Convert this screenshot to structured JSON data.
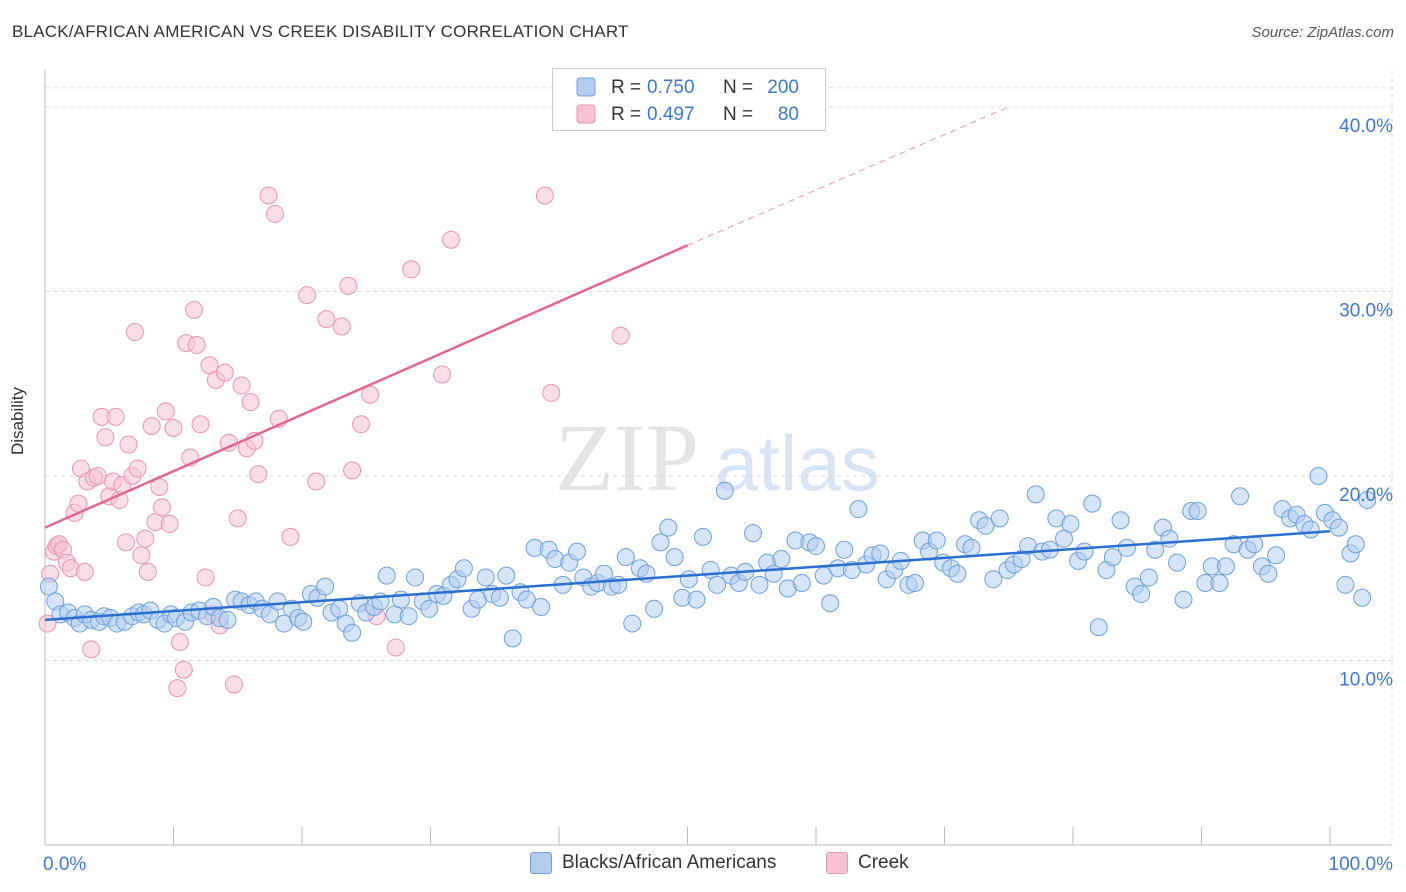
{
  "header": {
    "title": "BLACK/AFRICAN AMERICAN VS CREEK DISABILITY CORRELATION CHART",
    "source": "Source: ZipAtlas.com"
  },
  "watermark": {
    "zip": "ZIP",
    "atlas": "atlas"
  },
  "colors": {
    "blue": "#6fa0dc",
    "blue_fill": "#b3cdf0",
    "blue_line": "#2a6fd0",
    "pink": "#e895b2",
    "pink_fill": "#f6c2d4",
    "pink_line": "#e06890",
    "axis_text": "#3d78d0",
    "grid": "#d8d8d8"
  },
  "stats_legend": {
    "rows": [
      {
        "r_label": "R = ",
        "r_value": "0.750",
        "n_label": "N = ",
        "n_value": "200"
      },
      {
        "r_label": "R = ",
        "r_value": "0.497",
        "n_label": "N = ",
        "n_value": "80"
      }
    ]
  },
  "bottom_legend": {
    "series1": "Blacks/African Americans",
    "series2": "Creek"
  },
  "chart_data": {
    "type": "scatter",
    "title": "BLACK/AFRICAN AMERICAN VS CREEK DISABILITY CORRELATION CHART",
    "xlabel": "",
    "ylabel": "Disability",
    "xlim": [
      0,
      100
    ],
    "ylim": [
      0,
      42
    ],
    "x_tick_labels": [
      "0.0%",
      "100.0%"
    ],
    "y_ticks": [
      10,
      20,
      30,
      40
    ],
    "y_tick_labels": [
      "10.0%",
      "20.0%",
      "30.0%",
      "40.0%"
    ],
    "grid": true,
    "legend": "top-center",
    "series": [
      {
        "name": "Blacks/African Americans",
        "R": 0.75,
        "N": 200,
        "trend": {
          "x": [
            0,
            100
          ],
          "y": [
            12.2,
            17.0
          ],
          "dashed_extension": false
        },
        "points": [
          [
            0.3,
            14.0
          ],
          [
            0.8,
            13.2
          ],
          [
            1.2,
            12.5
          ],
          [
            1.8,
            12.6
          ],
          [
            2.3,
            12.3
          ],
          [
            2.7,
            12.0
          ],
          [
            3.1,
            12.5
          ],
          [
            3.6,
            12.2
          ],
          [
            4.2,
            12.1
          ],
          [
            4.6,
            12.4
          ],
          [
            5.1,
            12.3
          ],
          [
            5.6,
            12.0
          ],
          [
            6.2,
            12.1
          ],
          [
            6.8,
            12.4
          ],
          [
            7.3,
            12.6
          ],
          [
            7.7,
            12.5
          ],
          [
            8.2,
            12.7
          ],
          [
            8.8,
            12.2
          ],
          [
            9.3,
            12.0
          ],
          [
            9.8,
            12.5
          ],
          [
            10.2,
            12.3
          ],
          [
            10.9,
            12.1
          ],
          [
            11.4,
            12.6
          ],
          [
            12.0,
            12.7
          ],
          [
            12.6,
            12.4
          ],
          [
            13.1,
            12.9
          ],
          [
            13.6,
            12.3
          ],
          [
            14.2,
            12.2
          ],
          [
            14.8,
            13.3
          ],
          [
            15.3,
            13.2
          ],
          [
            15.9,
            13.0
          ],
          [
            16.4,
            13.2
          ],
          [
            16.9,
            12.8
          ],
          [
            17.5,
            12.5
          ],
          [
            18.1,
            13.2
          ],
          [
            18.6,
            12.0
          ],
          [
            19.2,
            12.8
          ],
          [
            19.7,
            12.3
          ],
          [
            20.1,
            12.1
          ],
          [
            20.7,
            13.6
          ],
          [
            21.2,
            13.4
          ],
          [
            21.8,
            14.0
          ],
          [
            22.3,
            12.6
          ],
          [
            22.9,
            12.8
          ],
          [
            23.4,
            12.0
          ],
          [
            23.9,
            11.5
          ],
          [
            24.5,
            13.1
          ],
          [
            25.0,
            12.6
          ],
          [
            25.6,
            12.9
          ],
          [
            26.1,
            13.2
          ],
          [
            26.6,
            14.6
          ],
          [
            27.2,
            12.5
          ],
          [
            27.7,
            13.3
          ],
          [
            28.3,
            12.4
          ],
          [
            28.8,
            14.5
          ],
          [
            29.4,
            13.2
          ],
          [
            29.9,
            12.8
          ],
          [
            30.5,
            13.6
          ],
          [
            31.0,
            13.5
          ],
          [
            31.6,
            14.1
          ],
          [
            32.1,
            14.4
          ],
          [
            32.6,
            15.0
          ],
          [
            33.2,
            12.8
          ],
          [
            33.7,
            13.3
          ],
          [
            34.3,
            14.5
          ],
          [
            34.8,
            13.6
          ],
          [
            35.4,
            13.4
          ],
          [
            35.9,
            14.6
          ],
          [
            36.4,
            11.2
          ],
          [
            37.0,
            13.7
          ],
          [
            37.5,
            13.3
          ],
          [
            38.1,
            16.1
          ],
          [
            38.6,
            12.9
          ],
          [
            39.2,
            16.0
          ],
          [
            39.7,
            15.5
          ],
          [
            40.3,
            14.1
          ],
          [
            40.8,
            15.3
          ],
          [
            41.4,
            15.9
          ],
          [
            41.9,
            14.5
          ],
          [
            42.5,
            14.0
          ],
          [
            43.0,
            14.2
          ],
          [
            43.5,
            14.7
          ],
          [
            44.1,
            14.0
          ],
          [
            44.6,
            14.1
          ],
          [
            45.2,
            15.6
          ],
          [
            45.7,
            12.0
          ],
          [
            46.3,
            15.0
          ],
          [
            46.8,
            14.7
          ],
          [
            47.4,
            12.8
          ],
          [
            47.9,
            16.4
          ],
          [
            48.5,
            17.2
          ],
          [
            49.0,
            15.6
          ],
          [
            49.6,
            13.4
          ],
          [
            50.1,
            14.4
          ],
          [
            50.7,
            13.3
          ],
          [
            51.2,
            16.7
          ],
          [
            51.8,
            14.9
          ],
          [
            52.3,
            14.1
          ],
          [
            52.9,
            19.2
          ],
          [
            53.4,
            14.6
          ],
          [
            54.0,
            14.2
          ],
          [
            54.5,
            14.8
          ],
          [
            55.1,
            16.9
          ],
          [
            55.6,
            14.1
          ],
          [
            56.2,
            15.3
          ],
          [
            56.7,
            14.7
          ],
          [
            57.3,
            15.5
          ],
          [
            57.8,
            13.9
          ],
          [
            58.4,
            16.5
          ],
          [
            58.9,
            14.2
          ],
          [
            59.5,
            16.4
          ],
          [
            60.0,
            16.2
          ],
          [
            60.6,
            14.6
          ],
          [
            61.1,
            13.1
          ],
          [
            61.7,
            15.0
          ],
          [
            62.2,
            16.0
          ],
          [
            62.8,
            14.9
          ],
          [
            63.3,
            18.2
          ],
          [
            63.9,
            15.2
          ],
          [
            64.4,
            15.7
          ],
          [
            65.0,
            15.8
          ],
          [
            65.5,
            14.4
          ],
          [
            66.1,
            14.9
          ],
          [
            66.6,
            15.4
          ],
          [
            67.2,
            14.1
          ],
          [
            67.7,
            14.2
          ],
          [
            68.3,
            16.5
          ],
          [
            68.8,
            15.9
          ],
          [
            69.4,
            16.5
          ],
          [
            69.9,
            15.3
          ],
          [
            70.5,
            15.0
          ],
          [
            71.0,
            14.7
          ],
          [
            71.6,
            16.3
          ],
          [
            72.1,
            16.1
          ],
          [
            72.7,
            17.6
          ],
          [
            73.2,
            17.3
          ],
          [
            73.8,
            14.4
          ],
          [
            74.3,
            17.7
          ],
          [
            74.9,
            14.9
          ],
          [
            75.4,
            15.2
          ],
          [
            76.0,
            15.5
          ],
          [
            76.5,
            16.2
          ],
          [
            77.1,
            19.0
          ],
          [
            77.6,
            15.9
          ],
          [
            78.2,
            16.0
          ],
          [
            78.7,
            17.7
          ],
          [
            79.3,
            16.6
          ],
          [
            79.8,
            17.4
          ],
          [
            80.4,
            15.4
          ],
          [
            80.9,
            15.9
          ],
          [
            81.5,
            18.5
          ],
          [
            82.0,
            11.8
          ],
          [
            82.6,
            14.9
          ],
          [
            83.1,
            15.6
          ],
          [
            83.7,
            17.6
          ],
          [
            84.2,
            16.1
          ],
          [
            84.8,
            14.0
          ],
          [
            85.3,
            13.6
          ],
          [
            85.9,
            14.5
          ],
          [
            86.4,
            16.0
          ],
          [
            87.0,
            17.2
          ],
          [
            87.5,
            16.6
          ],
          [
            88.1,
            15.3
          ],
          [
            88.6,
            13.3
          ],
          [
            89.2,
            18.1
          ],
          [
            89.7,
            18.1
          ],
          [
            90.3,
            14.2
          ],
          [
            90.8,
            15.1
          ],
          [
            91.4,
            14.2
          ],
          [
            91.9,
            15.1
          ],
          [
            92.5,
            16.3
          ],
          [
            93.0,
            18.9
          ],
          [
            93.6,
            16.0
          ],
          [
            94.1,
            16.3
          ],
          [
            94.7,
            15.1
          ],
          [
            95.2,
            14.7
          ],
          [
            95.8,
            15.7
          ],
          [
            96.3,
            18.2
          ],
          [
            96.9,
            17.7
          ],
          [
            97.4,
            17.9
          ],
          [
            98.0,
            17.4
          ],
          [
            98.5,
            17.1
          ],
          [
            99.1,
            20.0
          ],
          [
            99.6,
            18.0
          ],
          [
            100.2,
            17.6
          ],
          [
            100.7,
            17.2
          ],
          [
            101.2,
            14.1
          ],
          [
            101.6,
            15.8
          ],
          [
            102.0,
            16.3
          ],
          [
            102.5,
            13.4
          ],
          [
            102.9,
            18.7
          ]
        ]
      },
      {
        "name": "Creek",
        "R": 0.497,
        "N": 80,
        "trend": {
          "x": [
            0,
            50
          ],
          "y": [
            17.2,
            32.5
          ],
          "dashed_to": [
            75,
            40.0
          ]
        },
        "points": [
          [
            0.2,
            12.0
          ],
          [
            0.4,
            14.7
          ],
          [
            0.7,
            15.9
          ],
          [
            0.9,
            16.2
          ],
          [
            1.1,
            16.3
          ],
          [
            1.4,
            16.0
          ],
          [
            1.7,
            15.3
          ],
          [
            2.0,
            15.0
          ],
          [
            2.3,
            18.0
          ],
          [
            2.6,
            18.5
          ],
          [
            2.8,
            20.4
          ],
          [
            3.1,
            14.8
          ],
          [
            3.3,
            19.7
          ],
          [
            3.6,
            10.6
          ],
          [
            3.8,
            19.9
          ],
          [
            4.1,
            20.0
          ],
          [
            4.4,
            23.2
          ],
          [
            4.7,
            22.1
          ],
          [
            5.0,
            18.9
          ],
          [
            5.3,
            19.7
          ],
          [
            5.5,
            23.2
          ],
          [
            5.8,
            18.7
          ],
          [
            6.0,
            19.5
          ],
          [
            6.3,
            16.4
          ],
          [
            6.5,
            21.7
          ],
          [
            6.8,
            20.0
          ],
          [
            7.0,
            27.8
          ],
          [
            7.2,
            20.4
          ],
          [
            7.5,
            15.7
          ],
          [
            7.8,
            16.6
          ],
          [
            8.0,
            14.8
          ],
          [
            8.3,
            22.7
          ],
          [
            8.6,
            17.5
          ],
          [
            8.9,
            19.4
          ],
          [
            9.1,
            18.3
          ],
          [
            9.4,
            23.5
          ],
          [
            9.7,
            17.4
          ],
          [
            10.0,
            22.6
          ],
          [
            10.3,
            8.5
          ],
          [
            10.5,
            11.0
          ],
          [
            10.8,
            9.5
          ],
          [
            11.0,
            27.2
          ],
          [
            11.3,
            21.0
          ],
          [
            11.6,
            29.0
          ],
          [
            11.8,
            27.1
          ],
          [
            12.1,
            22.8
          ],
          [
            12.5,
            14.5
          ],
          [
            12.8,
            26.0
          ],
          [
            13.1,
            12.5
          ],
          [
            13.3,
            25.2
          ],
          [
            13.6,
            11.9
          ],
          [
            14.0,
            25.6
          ],
          [
            14.3,
            21.8
          ],
          [
            14.7,
            8.7
          ],
          [
            15.0,
            17.7
          ],
          [
            15.3,
            24.9
          ],
          [
            15.7,
            21.5
          ],
          [
            16.0,
            24.0
          ],
          [
            16.3,
            21.9
          ],
          [
            16.6,
            20.1
          ],
          [
            17.4,
            35.2
          ],
          [
            17.9,
            34.2
          ],
          [
            18.2,
            23.1
          ],
          [
            19.1,
            16.7
          ],
          [
            20.4,
            29.8
          ],
          [
            21.1,
            19.7
          ],
          [
            21.9,
            28.5
          ],
          [
            23.1,
            28.1
          ],
          [
            23.6,
            30.3
          ],
          [
            23.9,
            20.3
          ],
          [
            24.6,
            22.8
          ],
          [
            25.3,
            24.4
          ],
          [
            25.8,
            12.4
          ],
          [
            27.3,
            10.7
          ],
          [
            28.5,
            31.2
          ],
          [
            30.9,
            25.5
          ],
          [
            31.6,
            32.8
          ],
          [
            39.4,
            24.5
          ],
          [
            38.9,
            35.2
          ],
          [
            44.8,
            27.6
          ]
        ]
      }
    ]
  }
}
